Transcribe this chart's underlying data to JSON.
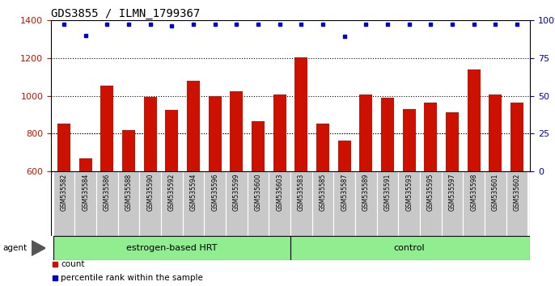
{
  "title": "GDS3855 / ILMN_1799367",
  "samples": [
    "GSM535582",
    "GSM535584",
    "GSM535586",
    "GSM535588",
    "GSM535590",
    "GSM535592",
    "GSM535594",
    "GSM535596",
    "GSM535599",
    "GSM535600",
    "GSM535603",
    "GSM535583",
    "GSM535585",
    "GSM535587",
    "GSM535589",
    "GSM535591",
    "GSM535593",
    "GSM535595",
    "GSM535597",
    "GSM535598",
    "GSM535601",
    "GSM535602"
  ],
  "bar_values": [
    855,
    670,
    1055,
    820,
    995,
    925,
    1080,
    1000,
    1025,
    865,
    1005,
    1205,
    855,
    765,
    1005,
    990,
    930,
    965,
    915,
    1140,
    1005,
    965
  ],
  "percentile_values": [
    97,
    90,
    97,
    97,
    97,
    96,
    97,
    97,
    97,
    97,
    97,
    97,
    97,
    89,
    97,
    97,
    97,
    97,
    97,
    97,
    97,
    97
  ],
  "bar_color": "#cc1100",
  "dot_color": "#0000cc",
  "ylim_left": [
    600,
    1400
  ],
  "ylim_right": [
    0,
    100
  ],
  "yticks_left": [
    600,
    800,
    1000,
    1200,
    1400
  ],
  "yticks_right": [
    0,
    25,
    50,
    75,
    100
  ],
  "grid_values": [
    800,
    1000,
    1200
  ],
  "group1_label": "estrogen-based HRT",
  "group2_label": "control",
  "group1_count": 11,
  "group2_count": 11,
  "legend_count_label": "count",
  "legend_pct_label": "percentile rank within the sample",
  "agent_label": "agent",
  "group_bg_color": "#90ee90",
  "label_bg_color": "#c8c8c8",
  "bar_width": 0.6,
  "title_fontsize": 10,
  "tick_fontsize": 8,
  "label_fontsize": 5.5,
  "group_fontsize": 8,
  "legend_fontsize": 7.5
}
